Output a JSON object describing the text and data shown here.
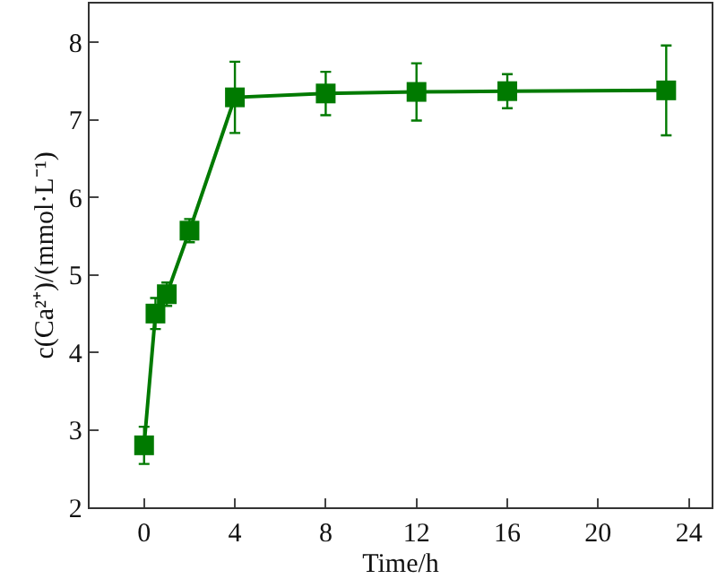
{
  "chart_data": {
    "type": "line",
    "xlabel": "Time/h",
    "ylabel": "c(Ca²⁺)/(mmol·L⁻¹)",
    "x": [
      0,
      0.5,
      1,
      2,
      4,
      8,
      12,
      16,
      23
    ],
    "series": [
      {
        "color": "#007a00",
        "values": [
          2.8,
          4.5,
          4.75,
          5.57,
          7.29,
          7.34,
          7.36,
          7.37,
          7.38
        ],
        "errors": [
          0.24,
          0.2,
          0.15,
          0.15,
          0.46,
          0.28,
          0.37,
          0.22,
          0.58
        ]
      }
    ],
    "xlim": [
      -2.4,
      25
    ],
    "ylim": [
      2,
      8.5
    ],
    "xticks": [
      0,
      4,
      8,
      12,
      16,
      20,
      24
    ],
    "yticks": [
      2,
      3,
      4,
      5,
      6,
      7,
      8
    ],
    "marker": "square",
    "line_style": "solid",
    "grid": false,
    "legend": false
  }
}
